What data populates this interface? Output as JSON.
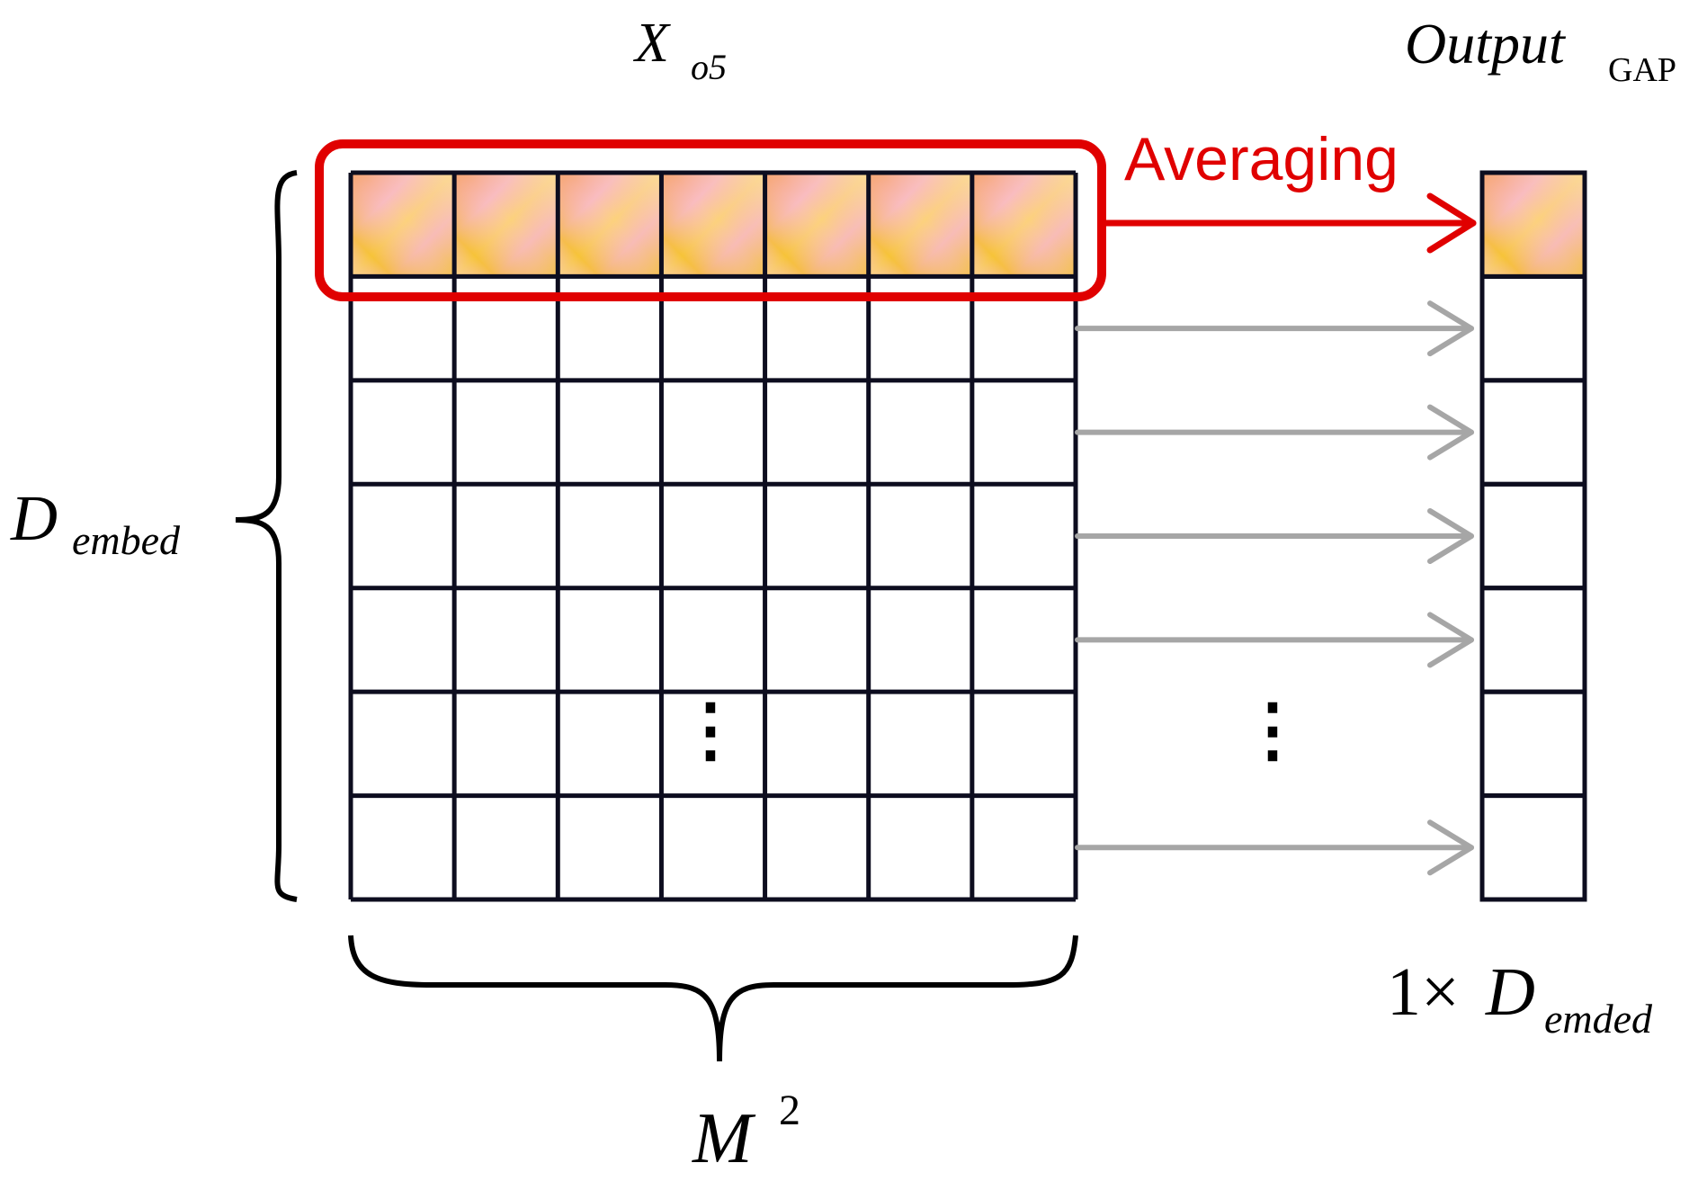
{
  "labels": {
    "matrix_symbol": "X",
    "matrix_subscript": "o5",
    "output_symbol": "Output",
    "output_subscript": "GAP",
    "averaging": "Averaging",
    "rows_symbol": "D",
    "rows_subscript": "embed",
    "cols_symbol": "M",
    "cols_superscript": "2",
    "output_size_prefix": "1×",
    "output_size_symbol": "D",
    "output_size_subscript": "emded",
    "ellipsis": "⋮"
  },
  "grid": {
    "columns": 7,
    "rows": 7,
    "highlighted_row": 0,
    "ellipsis_row": 5
  },
  "colors": {
    "highlight_box": "#e00000",
    "grid_line": "#0d0d1f",
    "arrow_gray": "#a6a6a6",
    "cell_gradient": [
      "#f5b27a",
      "#f9c0c0",
      "#fbd38a",
      "#f7c2b8",
      "#f2c200"
    ]
  }
}
